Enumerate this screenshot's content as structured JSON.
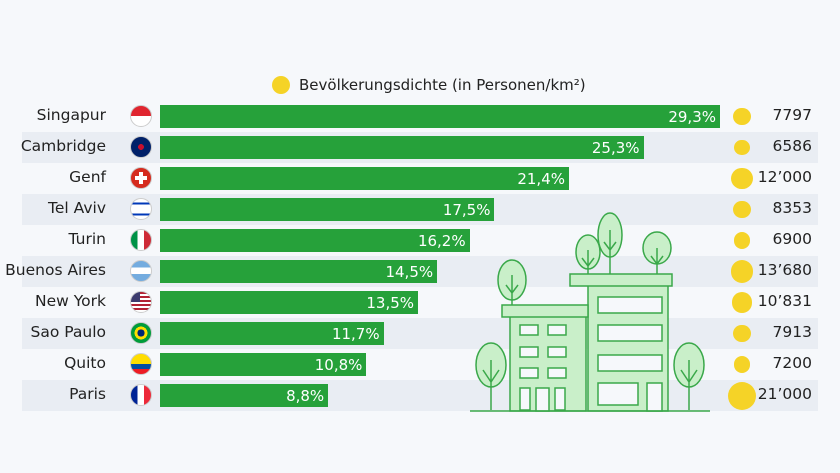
{
  "chart_data": {
    "type": "bar",
    "orientation": "horizontal",
    "legend": {
      "label": "Bevölkerungsdichte (in Personen/km²)",
      "placement": "top"
    },
    "categories": [
      "Singapur",
      "Cambridge",
      "Genf",
      "Tel Aviv",
      "Turin",
      "Buenos Aires",
      "New York",
      "Sao Paulo",
      "Quito",
      "Paris"
    ],
    "values": [
      29.3,
      25.3,
      21.4,
      17.5,
      16.2,
      14.5,
      13.5,
      11.7,
      10.8,
      8.8
    ],
    "value_labels": [
      "29,3%",
      "25,3%",
      "21,4%",
      "17,5%",
      "16,2%",
      "14,5%",
      "13,5%",
      "11,7%",
      "10,8%",
      "8,8%"
    ],
    "density": [
      7797,
      6586,
      12000,
      8353,
      6900,
      13680,
      10831,
      7913,
      7200,
      21000
    ],
    "density_labels": [
      "7797",
      "6586",
      "12’000",
      "8353",
      "6900",
      "13’680",
      "10’831",
      "7913",
      "7200",
      "21’000"
    ],
    "flags": [
      "singapore-flag",
      "uk-flag",
      "switzerland-flag",
      "israel-flag",
      "italy-flag",
      "argentina-flag",
      "usa-flag",
      "brazil-flag",
      "ecuador-flag",
      "france-flag"
    ],
    "colors": {
      "bar": "#26a13a",
      "bubble": "#f5d327",
      "stripe": "#e9edf3"
    }
  }
}
